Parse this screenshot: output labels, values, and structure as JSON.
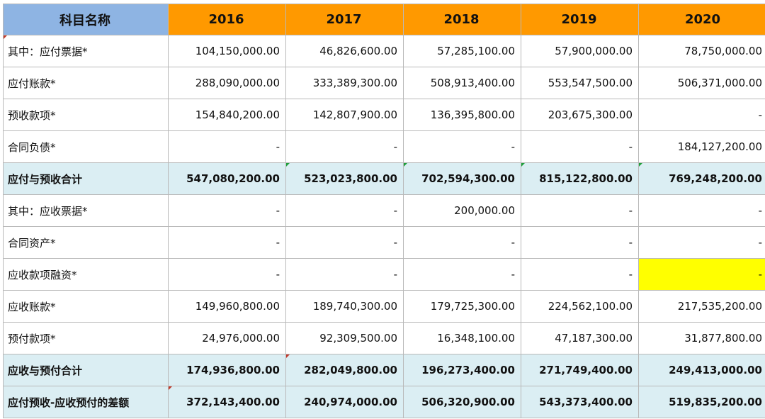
{
  "header": {
    "label": "科目名称",
    "years": [
      "2016",
      "2017",
      "2018",
      "2019",
      "2020"
    ]
  },
  "rows": [
    {
      "label": "其中：应付票据*",
      "values": [
        "104,150,000.00",
        "46,826,600.00",
        "57,285,100.00",
        "57,900,000.00",
        "78,750,000.00"
      ]
    },
    {
      "label": "应付账款*",
      "values": [
        "288,090,000.00",
        "333,389,300.00",
        "508,913,400.00",
        "553,547,500.00",
        "506,371,000.00"
      ]
    },
    {
      "label": "预收款项*",
      "values": [
        "154,840,200.00",
        "142,807,900.00",
        "136,395,800.00",
        "203,675,300.00",
        "-"
      ]
    },
    {
      "label": "合同负债*",
      "values": [
        "-",
        "-",
        "-",
        "-",
        "184,127,200.00"
      ]
    },
    {
      "label": "应付与预收合计",
      "values": [
        "547,080,200.00",
        "523,023,800.00",
        "702,594,300.00",
        "815,122,800.00",
        "769,248,200.00"
      ]
    },
    {
      "label": "其中：应收票据*",
      "values": [
        "-",
        "-",
        "200,000.00",
        "-",
        "-"
      ]
    },
    {
      "label": "合同资产*",
      "values": [
        "-",
        "-",
        "-",
        "-",
        "-"
      ]
    },
    {
      "label": "应收款项融资*",
      "values": [
        "-",
        "-",
        "-",
        "-",
        "-"
      ]
    },
    {
      "label": "应收账款*",
      "values": [
        "149,960,800.00",
        "189,740,300.00",
        "179,725,300.00",
        "224,562,100.00",
        "217,535,200.00"
      ]
    },
    {
      "label": "预付款项*",
      "values": [
        "24,976,000.00",
        "92,309,500.00",
        "16,348,100.00",
        "47,187,300.00",
        "31,877,800.00"
      ]
    },
    {
      "label": "应收与预付合计",
      "values": [
        "174,936,800.00",
        "282,049,800.00",
        "196,273,400.00",
        "271,749,400.00",
        "249,413,000.00"
      ]
    },
    {
      "label": "应付预收-应收预付的差额",
      "values": [
        "372,143,400.00",
        "240,974,000.00",
        "506,320,900.00",
        "543,373,400.00",
        "519,835,200.00"
      ]
    }
  ],
  "colors": {
    "header_label_bg": "#8eb4e3",
    "header_year_bg": "#ff9900",
    "subtotal_bg": "#dbeef3",
    "highlight": "#ffff00"
  }
}
